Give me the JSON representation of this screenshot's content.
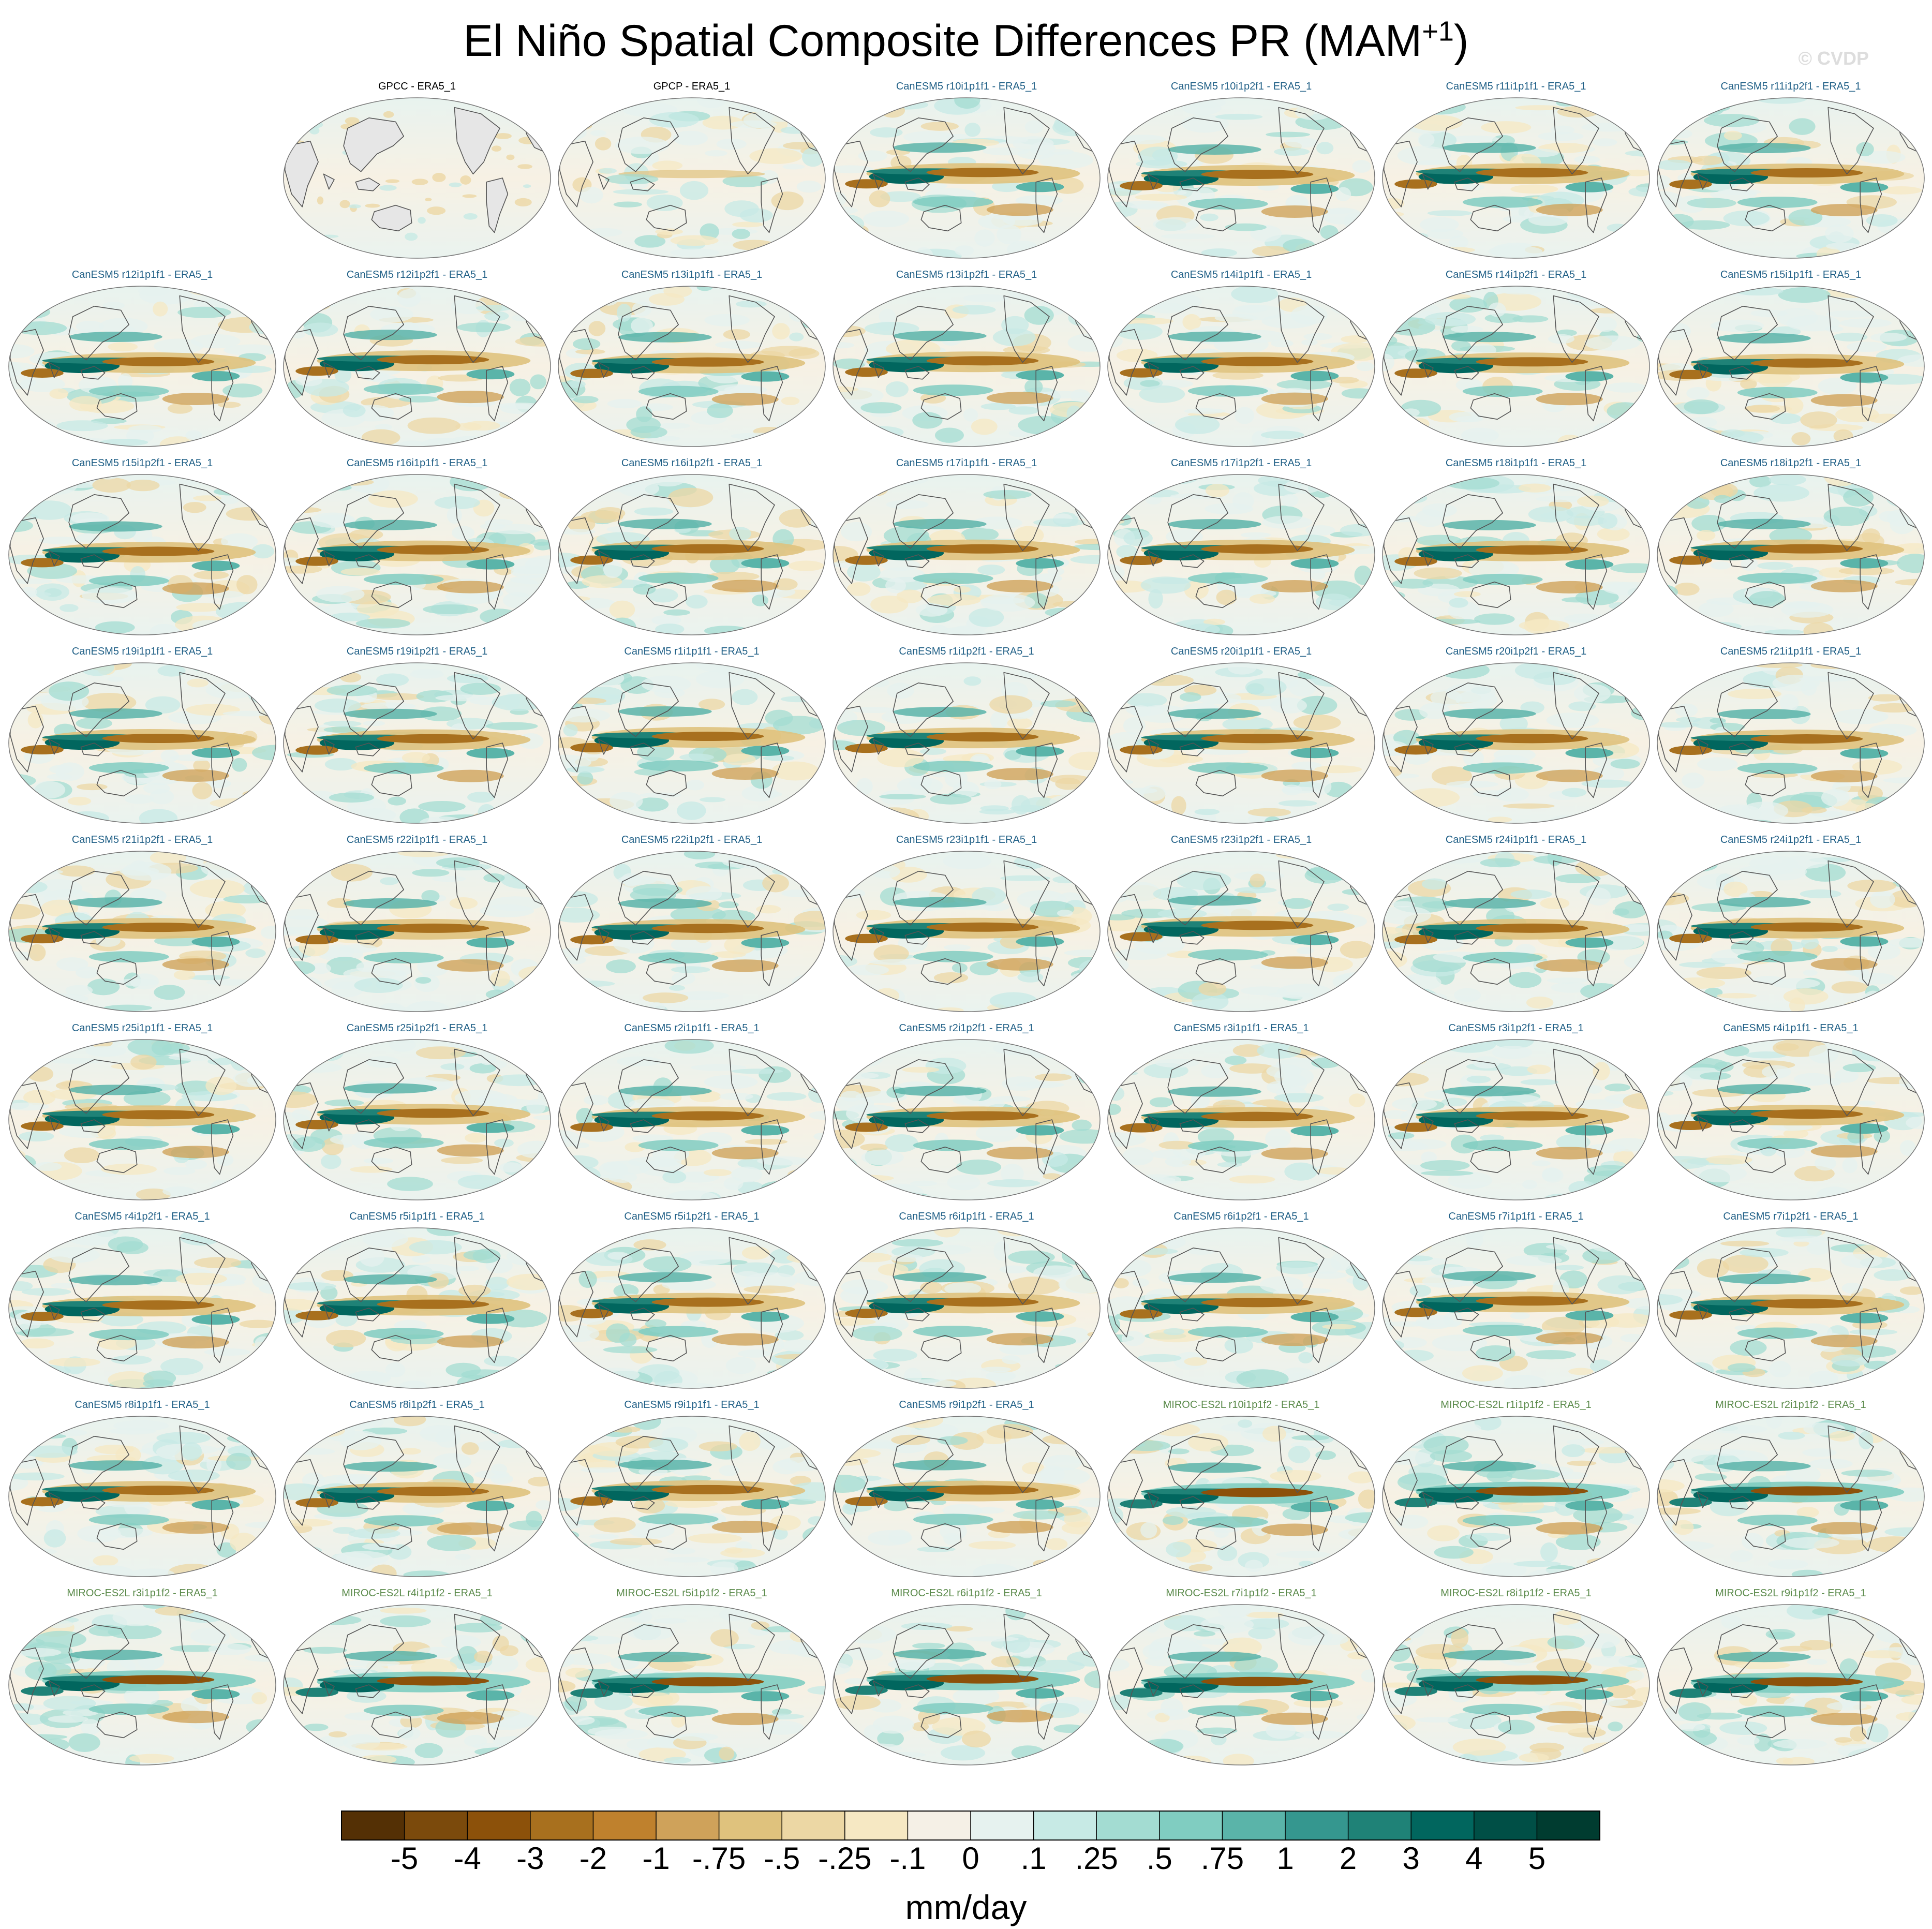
{
  "title": {
    "main": "El Niño Spatial Composite Differences PR (MAM",
    "sup": "+1",
    "close": ")"
  },
  "watermark": "© CVDP",
  "colors": {
    "land": "#e6e6e6",
    "coast": "#555555",
    "ocean": "#f3efe7",
    "canesm_label": "#1f5f86",
    "miroc_label": "#5a8a4a",
    "obs_label": "#000000"
  },
  "chart_data": {
    "type": "heatmap",
    "projection": "robinson (pacific-centered)",
    "variable": "PR",
    "season": "MAM+1",
    "colorbar": {
      "units": "mm/day",
      "tick_labels": [
        "-5",
        "-4",
        "-3",
        "-2",
        "-1",
        "-.75",
        "-.5",
        "-.25",
        "-.1",
        "0",
        ".1",
        ".25",
        ".5",
        ".75",
        "1",
        "2",
        "3",
        "4",
        "5"
      ],
      "colors": [
        "#543005",
        "#7b4a0c",
        "#8c510a",
        "#a8701e",
        "#bf812d",
        "#cfa25a",
        "#dfc27d",
        "#ecd7a4",
        "#f6e8c3",
        "#f5f0e6",
        "#e6f2ef",
        "#c7eae5",
        "#a3dcd2",
        "#80cdc1",
        "#5ab4a9",
        "#35978f",
        "#1f8277",
        "#01665e",
        "#004f46",
        "#003c30"
      ]
    },
    "panels": [
      {
        "label": "GPCC - ERA5_1",
        "group": "obs",
        "land_masked": true
      },
      {
        "label": "GPCP - ERA5_1",
        "group": "obs"
      },
      {
        "label": "CanESM5 r10i1p1f1 - ERA5_1",
        "group": "canesm"
      },
      {
        "label": "CanESM5 r10i1p2f1 - ERA5_1",
        "group": "canesm"
      },
      {
        "label": "CanESM5 r11i1p1f1 - ERA5_1",
        "group": "canesm"
      },
      {
        "label": "CanESM5 r11i1p2f1 - ERA5_1",
        "group": "canesm"
      },
      {
        "label": "CanESM5 r12i1p1f1 - ERA5_1",
        "group": "canesm"
      },
      {
        "label": "CanESM5 r12i1p2f1 - ERA5_1",
        "group": "canesm"
      },
      {
        "label": "CanESM5 r13i1p1f1 - ERA5_1",
        "group": "canesm"
      },
      {
        "label": "CanESM5 r13i1p2f1 - ERA5_1",
        "group": "canesm"
      },
      {
        "label": "CanESM5 r14i1p1f1 - ERA5_1",
        "group": "canesm"
      },
      {
        "label": "CanESM5 r14i1p2f1 - ERA5_1",
        "group": "canesm"
      },
      {
        "label": "CanESM5 r15i1p1f1 - ERA5_1",
        "group": "canesm"
      },
      {
        "label": "CanESM5 r15i1p2f1 - ERA5_1",
        "group": "canesm"
      },
      {
        "label": "CanESM5 r16i1p1f1 - ERA5_1",
        "group": "canesm"
      },
      {
        "label": "CanESM5 r16i1p2f1 - ERA5_1",
        "group": "canesm"
      },
      {
        "label": "CanESM5 r17i1p1f1 - ERA5_1",
        "group": "canesm"
      },
      {
        "label": "CanESM5 r17i1p2f1 - ERA5_1",
        "group": "canesm"
      },
      {
        "label": "CanESM5 r18i1p1f1 - ERA5_1",
        "group": "canesm"
      },
      {
        "label": "CanESM5 r18i1p2f1 - ERA5_1",
        "group": "canesm"
      },
      {
        "label": "CanESM5 r19i1p1f1 - ERA5_1",
        "group": "canesm"
      },
      {
        "label": "CanESM5 r19i1p2f1 - ERA5_1",
        "group": "canesm"
      },
      {
        "label": "CanESM5 r1i1p1f1 - ERA5_1",
        "group": "canesm"
      },
      {
        "label": "CanESM5 r1i1p2f1 - ERA5_1",
        "group": "canesm"
      },
      {
        "label": "CanESM5 r20i1p1f1 - ERA5_1",
        "group": "canesm"
      },
      {
        "label": "CanESM5 r20i1p2f1 - ERA5_1",
        "group": "canesm"
      },
      {
        "label": "CanESM5 r21i1p1f1 - ERA5_1",
        "group": "canesm"
      },
      {
        "label": "CanESM5 r21i1p2f1 - ERA5_1",
        "group": "canesm"
      },
      {
        "label": "CanESM5 r22i1p1f1 - ERA5_1",
        "group": "canesm"
      },
      {
        "label": "CanESM5 r22i1p2f1 - ERA5_1",
        "group": "canesm"
      },
      {
        "label": "CanESM5 r23i1p1f1 - ERA5_1",
        "group": "canesm"
      },
      {
        "label": "CanESM5 r23i1p2f1 - ERA5_1",
        "group": "canesm"
      },
      {
        "label": "CanESM5 r24i1p1f1 - ERA5_1",
        "group": "canesm"
      },
      {
        "label": "CanESM5 r24i1p2f1 - ERA5_1",
        "group": "canesm"
      },
      {
        "label": "CanESM5 r25i1p1f1 - ERA5_1",
        "group": "canesm"
      },
      {
        "label": "CanESM5 r25i1p2f1 - ERA5_1",
        "group": "canesm"
      },
      {
        "label": "CanESM5 r2i1p1f1 - ERA5_1",
        "group": "canesm"
      },
      {
        "label": "CanESM5 r2i1p2f1 - ERA5_1",
        "group": "canesm"
      },
      {
        "label": "CanESM5 r3i1p1f1 - ERA5_1",
        "group": "canesm"
      },
      {
        "label": "CanESM5 r3i1p2f1 - ERA5_1",
        "group": "canesm"
      },
      {
        "label": "CanESM5 r4i1p1f1 - ERA5_1",
        "group": "canesm"
      },
      {
        "label": "CanESM5 r4i1p2f1 - ERA5_1",
        "group": "canesm"
      },
      {
        "label": "CanESM5 r5i1p1f1 - ERA5_1",
        "group": "canesm"
      },
      {
        "label": "CanESM5 r5i1p2f1 - ERA5_1",
        "group": "canesm"
      },
      {
        "label": "CanESM5 r6i1p1f1 - ERA5_1",
        "group": "canesm"
      },
      {
        "label": "CanESM5 r6i1p2f1 - ERA5_1",
        "group": "canesm"
      },
      {
        "label": "CanESM5 r7i1p1f1 - ERA5_1",
        "group": "canesm"
      },
      {
        "label": "CanESM5 r7i1p2f1 - ERA5_1",
        "group": "canesm"
      },
      {
        "label": "CanESM5 r8i1p1f1 - ERA5_1",
        "group": "canesm"
      },
      {
        "label": "CanESM5 r8i1p2f1 - ERA5_1",
        "group": "canesm"
      },
      {
        "label": "CanESM5 r9i1p1f1 - ERA5_1",
        "group": "canesm"
      },
      {
        "label": "CanESM5 r9i1p2f1 - ERA5_1",
        "group": "canesm"
      },
      {
        "label": "MIROC-ES2L r10i1p1f2 - ERA5_1",
        "group": "miroc"
      },
      {
        "label": "MIROC-ES2L r1i1p1f2 - ERA5_1",
        "group": "miroc"
      },
      {
        "label": "MIROC-ES2L r2i1p1f2 - ERA5_1",
        "group": "miroc"
      },
      {
        "label": "MIROC-ES2L r3i1p1f2 - ERA5_1",
        "group": "miroc"
      },
      {
        "label": "MIROC-ES2L r4i1p1f2 - ERA5_1",
        "group": "miroc"
      },
      {
        "label": "MIROC-ES2L r5i1p1f2 - ERA5_1",
        "group": "miroc"
      },
      {
        "label": "MIROC-ES2L r6i1p1f2 - ERA5_1",
        "group": "miroc"
      },
      {
        "label": "MIROC-ES2L r7i1p1f2 - ERA5_1",
        "group": "miroc"
      },
      {
        "label": "MIROC-ES2L r8i1p1f2 - ERA5_1",
        "group": "miroc"
      },
      {
        "label": "MIROC-ES2L r9i1p1f2 - ERA5_1",
        "group": "miroc"
      }
    ]
  }
}
